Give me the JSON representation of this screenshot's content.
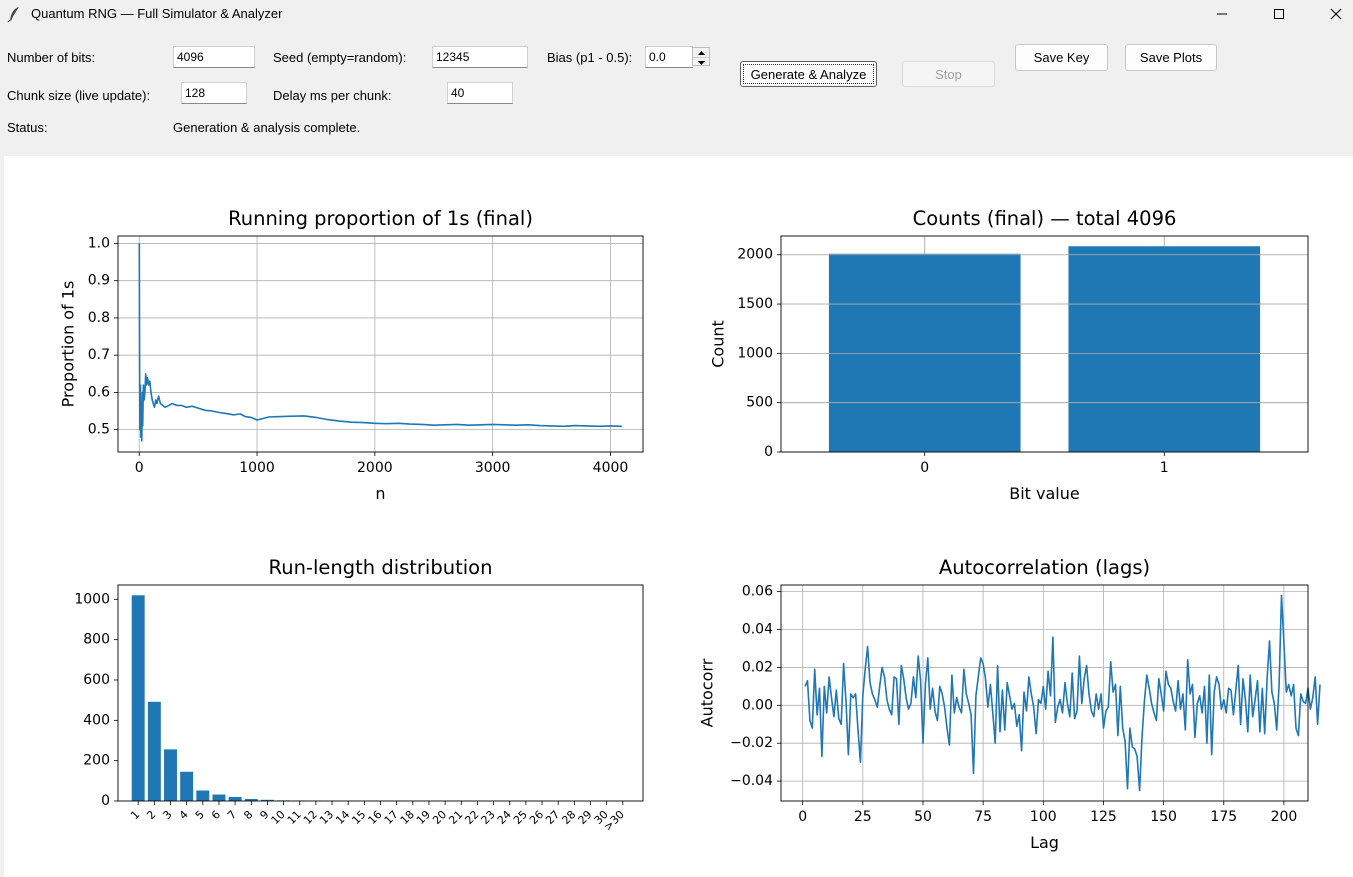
{
  "window": {
    "title": "Quantum RNG — Full Simulator & Analyzer",
    "icon": "feather-icon"
  },
  "controls": {
    "num_bits_label": "Number of bits:",
    "num_bits_value": "4096",
    "seed_label": "Seed (empty=random):",
    "seed_value": "12345",
    "bias_label": "Bias (p1 - 0.5):",
    "bias_value": "0.0",
    "chunk_label": "Chunk size (live update):",
    "chunk_value": "128",
    "delay_label": "Delay ms per chunk:",
    "delay_value": "40",
    "status_label": "Status:",
    "status_value": "Generation & analysis complete."
  },
  "buttons": {
    "generate": "Generate & Analyze",
    "stop": "Stop",
    "save_key": "Save Key",
    "save_plots": "Save Plots"
  },
  "colors": {
    "series": "#1f77b4",
    "grid": "#b0b0b0"
  },
  "chart_data": [
    {
      "type": "line",
      "title": "Running proportion of 1s (final)",
      "xlabel": "n",
      "ylabel": "Proportion of 1s",
      "xlim": [
        -180,
        4276
      ],
      "ylim": [
        0.44,
        1.02
      ],
      "xticks": [
        0,
        1000,
        2000,
        3000,
        4000
      ],
      "xtick_labels": [
        "0",
        "1000",
        "2000",
        "3000",
        "4000"
      ],
      "yticks": [
        0.5,
        0.6,
        0.7,
        0.8,
        0.9,
        1.0
      ],
      "ytick_labels": [
        "0.5",
        "0.6",
        "0.7",
        "0.8",
        "0.9",
        "1.0"
      ],
      "grid": true,
      "series": [
        {
          "x": [
            1,
            3,
            6,
            10,
            14,
            18,
            22,
            26,
            30,
            36,
            42,
            48,
            55,
            62,
            70,
            80,
            90,
            100,
            110,
            120,
            130,
            140,
            150,
            165,
            180,
            200,
            220,
            250,
            280,
            320,
            360,
            400,
            450,
            500,
            560,
            620,
            680,
            740,
            800,
            860,
            900,
            950,
            1000,
            1050,
            1100,
            1200,
            1300,
            1400,
            1500,
            1600,
            1700,
            1800,
            1900,
            2000,
            2100,
            2200,
            2300,
            2400,
            2500,
            2600,
            2700,
            2800,
            2900,
            3000,
            3100,
            3200,
            3300,
            3400,
            3500,
            3600,
            3700,
            3800,
            3900,
            4000,
            4096
          ],
          "y": [
            1.0,
            0.67,
            0.5,
            0.62,
            0.48,
            0.55,
            0.47,
            0.6,
            0.51,
            0.62,
            0.58,
            0.6,
            0.65,
            0.62,
            0.64,
            0.62,
            0.63,
            0.6,
            0.58,
            0.57,
            0.56,
            0.58,
            0.57,
            0.59,
            0.57,
            0.565,
            0.56,
            0.565,
            0.57,
            0.565,
            0.565,
            0.56,
            0.563,
            0.558,
            0.552,
            0.55,
            0.546,
            0.543,
            0.54,
            0.542,
            0.535,
            0.533,
            0.526,
            0.53,
            0.534,
            0.535,
            0.536,
            0.537,
            0.533,
            0.527,
            0.523,
            0.52,
            0.519,
            0.517,
            0.516,
            0.517,
            0.515,
            0.514,
            0.512,
            0.513,
            0.514,
            0.512,
            0.513,
            0.514,
            0.513,
            0.512,
            0.513,
            0.511,
            0.51,
            0.509,
            0.511,
            0.51,
            0.509,
            0.51,
            0.509
          ]
        }
      ]
    },
    {
      "type": "bar",
      "title": "Counts (final) — total 4096",
      "xlabel": "Bit value",
      "ylabel": "Count",
      "categories": [
        "0",
        "1"
      ],
      "values": [
        2010,
        2086
      ],
      "ylim": [
        0,
        2190
      ],
      "yticks": [
        0,
        500,
        1000,
        1500,
        2000
      ],
      "ytick_labels": [
        "0",
        "500",
        "1000",
        "1500",
        "2000"
      ],
      "grid": true
    },
    {
      "type": "bar",
      "title": "Run-length distribution",
      "xlabel": "",
      "ylabel": "",
      "categories": [
        "1",
        "2",
        "3",
        "4",
        "5",
        "6",
        "7",
        "8",
        "9",
        "10",
        "11",
        "12",
        "13",
        "14",
        "15",
        "16",
        "17",
        "18",
        "19",
        "20",
        "21",
        "22",
        "23",
        "24",
        "25",
        "26",
        "27",
        "28",
        "29",
        "30",
        ">30"
      ],
      "values": [
        1020,
        492,
        256,
        145,
        52,
        32,
        20,
        10,
        6,
        3,
        2,
        1,
        1,
        0,
        0,
        0,
        0,
        0,
        0,
        0,
        0,
        0,
        0,
        0,
        0,
        0,
        0,
        0,
        0,
        0,
        0
      ],
      "ylim": [
        0,
        1071
      ],
      "yticks": [
        0,
        200,
        400,
        600,
        800,
        1000
      ],
      "ytick_labels": [
        "0",
        "200",
        "400",
        "600",
        "800",
        "1000"
      ],
      "grid": false
    },
    {
      "type": "line",
      "title": "Autocorrelation (lags)",
      "xlabel": "Lag",
      "ylabel": "Autocorr",
      "xlim": [
        -9,
        210
      ],
      "ylim": [
        -0.0505,
        0.0635
      ],
      "xticks": [
        0,
        25,
        50,
        75,
        100,
        125,
        150,
        175,
        200
      ],
      "xtick_labels": [
        "0",
        "25",
        "50",
        "75",
        "100",
        "125",
        "150",
        "175",
        "200"
      ],
      "yticks": [
        -0.04,
        -0.02,
        0.0,
        0.02,
        0.04,
        0.06
      ],
      "ytick_labels": [
        "−0.04",
        "−0.02",
        "0.00",
        "0.02",
        "0.04",
        "0.06"
      ],
      "grid": true,
      "series": [
        {
          "x_start": 1,
          "x_step": 1,
          "y": [
            0.01,
            0.013,
            -0.008,
            -0.012,
            0.019,
            -0.005,
            0.009,
            -0.027,
            0.01,
            -0.004,
            0.015,
            0.004,
            -0.006,
            0.008,
            -0.007,
            -0.01,
            0.022,
            0.002,
            -0.026,
            0.006,
            0.004,
            0.006,
            -0.013,
            -0.03,
            0.005,
            0.019,
            0.031,
            0.012,
            0.006,
            0.003,
            -0.001,
            0.01,
            0.02,
            0.015,
            0.003,
            -0.002,
            -0.005,
            0.015,
            0.014,
            -0.01,
            0.021,
            0.014,
            0.004,
            -0.002,
            0.001,
            0.015,
            0.004,
            0.026,
            0.013,
            -0.02,
            0.011,
            0.025,
            -0.002,
            0.009,
            -0.003,
            -0.008,
            0.01,
            0.006,
            -0.001,
            -0.012,
            -0.021,
            0.016,
            -0.004,
            0.004,
            -0.001,
            -0.004,
            0.019,
            0.006,
            0.001,
            -0.005,
            -0.036,
            0.005,
            0.015,
            0.025,
            0.022,
            0.014,
            -0.001,
            0.011,
            -0.004,
            -0.02,
            0.021,
            -0.014,
            0.008,
            -0.013,
            0.012,
            0.005,
            -0.002,
            0.001,
            -0.011,
            -0.005,
            -0.024,
            0.007,
            -0.003,
            0.015,
            0.006,
            -0.001,
            -0.015,
            0.003,
            0.001,
            0.01,
            -0.002,
            0.018,
            0.005,
            0.036,
            -0.009,
            -0.001,
            0.003,
            -0.004,
            0.012,
            0.001,
            -0.006,
            0.017,
            -0.007,
            -0.003,
            0.026,
            0.001,
            0.014,
            0.021,
            0.006,
            -0.003,
            -0.006,
            0.006,
            -0.002,
            0.006,
            -0.012,
            -0.003,
            -0.001,
            0.023,
            0.007,
            0.011,
            -0.016,
            0.01,
            -0.012,
            -0.019,
            -0.044,
            -0.012,
            -0.022,
            -0.023,
            -0.027,
            -0.045,
            -0.017,
            0.002,
            0.016,
            0.009,
            0.001,
            -0.004,
            -0.008,
            0.014,
            0.006,
            -0.003,
            0.018,
            0.011,
            0.009,
            0.002,
            -0.003,
            0.013,
            -0.002,
            0.006,
            -0.013,
            0.024,
            0.006,
            0.011,
            -0.017,
            0.001,
            0.005,
            -0.004,
            0.01,
            -0.02,
            0.016,
            -0.026,
            0.007,
            0.015,
            0.011,
            -0.002,
            0.003,
            -0.004,
            0.009,
            0.008,
            -0.005,
            0.008,
            0.021,
            -0.01,
            0.014,
            0.003,
            -0.014,
            0.016,
            -0.006,
            0.003,
            0.013,
            -0.014,
            0.009,
            -0.015,
            0.014,
            0.034,
            0.007,
            0.001,
            -0.013,
            0.011,
            0.058,
            0.033,
            0.007,
            0.011,
            0.005,
            0.011,
            -0.012,
            -0.016,
            0.006,
            0.002,
            0.001,
            0.009,
            -0.002,
            0.004,
            0.015,
            -0.01,
            0.011
          ]
        }
      ]
    }
  ]
}
